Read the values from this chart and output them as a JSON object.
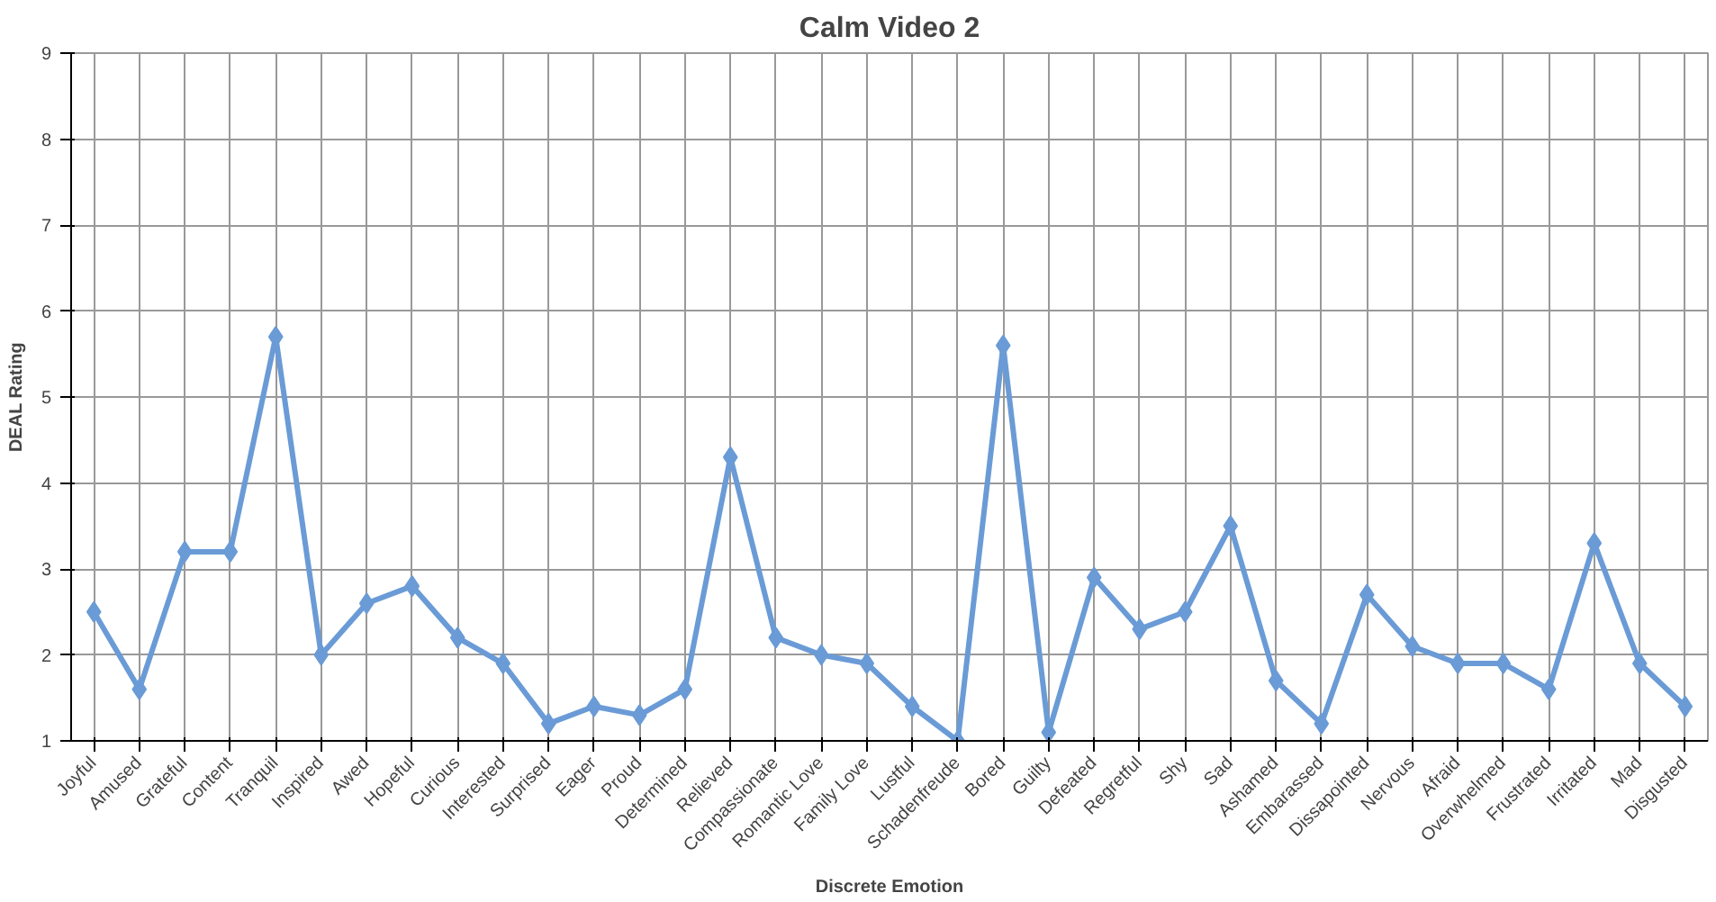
{
  "chart_data": {
    "type": "line",
    "title": "Calm Video 2",
    "xlabel": "Discrete Emotion",
    "ylabel": "DEAL Rating",
    "categories": [
      "Joyful",
      "Amused",
      "Grateful",
      "Content",
      "Tranquil",
      "Inspired",
      "Awed",
      "Hopeful",
      "Curious",
      "Interested",
      "Surprised",
      "Eager",
      "Proud",
      "Determined",
      "Relieved",
      "Compassionate",
      "Romantic Love",
      "Family Love",
      "Lustful",
      "Schadenfreude",
      "Bored",
      "Guilty",
      "Defeated",
      "Regretful",
      "Shy",
      "Sad",
      "Ashamed",
      "Embarassed",
      "Dissapointed",
      "Nervous",
      "Afraid",
      "Overwhelmed",
      "Frustrated",
      "Irritated",
      "Mad",
      "Disgusted"
    ],
    "series": [
      {
        "color": "#6a9bd6",
        "values": [
          2.5,
          1.6,
          3.2,
          3.2,
          5.7,
          2.0,
          2.6,
          2.8,
          2.2,
          1.9,
          1.2,
          1.4,
          1.3,
          1.6,
          4.3,
          2.2,
          2.0,
          1.9,
          1.4,
          1.0,
          5.6,
          1.1,
          2.9,
          2.3,
          2.5,
          3.5,
          1.7,
          1.2,
          2.7,
          2.1,
          1.9,
          1.9,
          1.6,
          3.3,
          1.9,
          1.4
        ]
      }
    ],
    "ylim": [
      1,
      9
    ],
    "yticks": [
      1,
      2,
      3,
      4,
      5,
      6,
      7,
      8,
      9
    ],
    "grid": true,
    "marker": "diamond",
    "line_style": "solid"
  }
}
